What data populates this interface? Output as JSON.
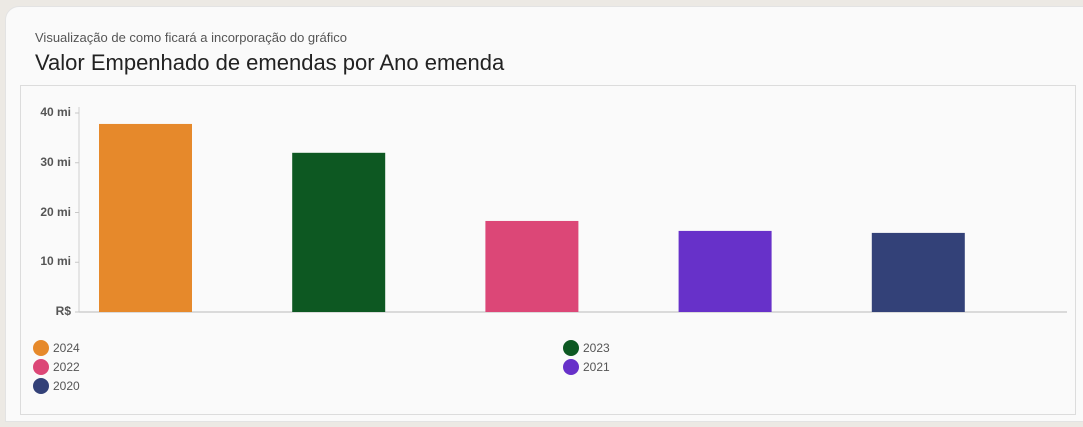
{
  "header": {
    "subtitle": "Visualização de como ficará a incorporação do gráfico",
    "title": "Valor Empenhado de emendas por Ano emenda"
  },
  "chart_data": {
    "type": "bar",
    "title": "Valor Empenhado de emendas por Ano emenda",
    "xlabel": "",
    "ylabel": "",
    "categories": [
      "2024",
      "2023",
      "2022",
      "2021",
      "2020"
    ],
    "values": [
      37.8,
      32.0,
      18.3,
      16.3,
      15.9
    ],
    "unit": "mi (R$ milhões)",
    "colors": [
      "#e6892b",
      "#0d5822",
      "#dc4777",
      "#6731c9",
      "#334178"
    ],
    "ylim": [
      0,
      40
    ],
    "yticks": [
      {
        "value": 0,
        "label": "R$"
      },
      {
        "value": 10,
        "label": "10 mi"
      },
      {
        "value": 20,
        "label": "20 mi"
      },
      {
        "value": 30,
        "label": "30 mi"
      },
      {
        "value": 40,
        "label": "40 mi"
      }
    ],
    "grid": false,
    "legend_position": "bottom"
  },
  "legend": [
    {
      "label": "2024",
      "color": "#e6892b"
    },
    {
      "label": "2023",
      "color": "#0d5822"
    },
    {
      "label": "2022",
      "color": "#dc4777"
    },
    {
      "label": "2021",
      "color": "#6731c9"
    },
    {
      "label": "2020",
      "color": "#334178"
    }
  ]
}
